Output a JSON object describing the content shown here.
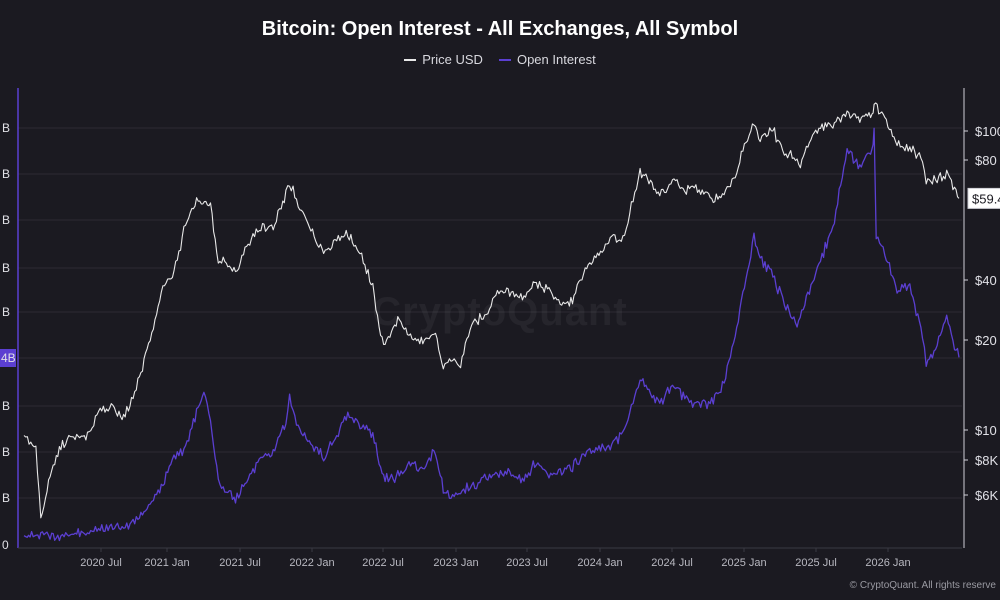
{
  "chart_data": {
    "type": "line",
    "title": "Bitcoin: Open Interest - All Exchanges, All Symbol",
    "legend_placement": "top-center",
    "grid": true,
    "x_ticks": [
      "2020 Jul",
      "2021 Jan",
      "2021 Jul",
      "2022 Jan",
      "2022 Jul",
      "2023 Jan",
      "2023 Jul",
      "2024 Jan",
      "2024 Jul",
      "2025 Jan",
      "2025 Jul",
      "2026 Jan"
    ],
    "xlim": [
      "2020-02-01",
      "2026-05-01"
    ],
    "left_axis": {
      "tick_labels": [
        "0",
        "B",
        "B",
        "B",
        "4B",
        "B",
        "B",
        "B",
        "B",
        "B"
      ],
      "highlight_label": "4B"
    },
    "right_axis": {
      "scale": "log",
      "tick_labels": [
        "$6K",
        "$8K",
        "$10",
        "$20",
        "$40",
        "$80",
        "$100"
      ],
      "current_price_label": "$59.4"
    },
    "series": [
      {
        "name": "Price USD",
        "color": "#e8e8e8",
        "points": [
          [
            "2020-02-01",
            9500
          ],
          [
            "2020-03-01",
            8700
          ],
          [
            "2020-03-13",
            5000
          ],
          [
            "2020-04-01",
            6600
          ],
          [
            "2020-05-01",
            8800
          ],
          [
            "2020-06-01",
            9600
          ],
          [
            "2020-07-01",
            9200
          ],
          [
            "2020-08-01",
            11600
          ],
          [
            "2020-09-01",
            11700
          ],
          [
            "2020-10-01",
            10800
          ],
          [
            "2020-11-01",
            13800
          ],
          [
            "2020-12-01",
            19000
          ],
          [
            "2021-01-01",
            29000
          ],
          [
            "2021-02-01",
            33500
          ],
          [
            "2021-03-01",
            49000
          ],
          [
            "2021-04-01",
            59000
          ],
          [
            "2021-05-01",
            57000
          ],
          [
            "2021-05-20",
            37000
          ],
          [
            "2021-06-01",
            36500
          ],
          [
            "2021-07-01",
            33500
          ],
          [
            "2021-08-01",
            41500
          ],
          [
            "2021-09-01",
            47000
          ],
          [
            "2021-10-01",
            48000
          ],
          [
            "2021-11-01",
            61000
          ],
          [
            "2021-11-10",
            67500
          ],
          [
            "2021-12-01",
            57000
          ],
          [
            "2022-01-01",
            47000
          ],
          [
            "2022-02-01",
            38500
          ],
          [
            "2022-03-01",
            43000
          ],
          [
            "2022-04-01",
            45500
          ],
          [
            "2022-05-01",
            38500
          ],
          [
            "2022-06-01",
            29800
          ],
          [
            "2022-06-20",
            20000
          ],
          [
            "2022-07-01",
            19300
          ],
          [
            "2022-08-01",
            23300
          ],
          [
            "2022-09-01",
            20000
          ],
          [
            "2022-10-01",
            19400
          ],
          [
            "2022-11-01",
            20500
          ],
          [
            "2022-11-20",
            16200
          ],
          [
            "2022-12-01",
            17100
          ],
          [
            "2023-01-01",
            16600
          ],
          [
            "2023-02-01",
            23100
          ],
          [
            "2023-03-01",
            23600
          ],
          [
            "2023-04-01",
            28500
          ],
          [
            "2023-05-01",
            29000
          ],
          [
            "2023-06-01",
            27200
          ],
          [
            "2023-07-01",
            30500
          ],
          [
            "2023-08-01",
            29300
          ],
          [
            "2023-09-01",
            25900
          ],
          [
            "2023-10-01",
            27000
          ],
          [
            "2023-11-01",
            34500
          ],
          [
            "2023-12-01",
            38000
          ],
          [
            "2024-01-01",
            44000
          ],
          [
            "2024-02-01",
            43000
          ],
          [
            "2024-03-01",
            62000
          ],
          [
            "2024-03-14",
            73000
          ],
          [
            "2024-04-01",
            70000
          ],
          [
            "2024-05-01",
            60000
          ],
          [
            "2024-06-01",
            67500
          ],
          [
            "2024-07-01",
            63000
          ],
          [
            "2024-08-01",
            64600
          ],
          [
            "2024-09-01",
            59000
          ],
          [
            "2024-10-01",
            61000
          ],
          [
            "2024-11-01",
            70000
          ],
          [
            "2024-12-01",
            96000
          ],
          [
            "2024-12-17",
            106000
          ],
          [
            "2025-01-01",
            94000
          ],
          [
            "2025-02-01",
            101000
          ],
          [
            "2025-03-01",
            84000
          ],
          [
            "2025-04-01",
            82000
          ],
          [
            "2025-04-09",
            77000
          ],
          [
            "2025-05-01",
            94000
          ],
          [
            "2025-06-01",
            104000
          ],
          [
            "2025-07-01",
            106000
          ],
          [
            "2025-08-01",
            115000
          ],
          [
            "2025-09-01",
            110000
          ],
          [
            "2025-10-01",
            114000
          ],
          [
            "2025-10-06",
            124000
          ],
          [
            "2025-11-01",
            110000
          ],
          [
            "2025-12-01",
            91000
          ],
          [
            "2026-01-01",
            88000
          ],
          [
            "2026-02-01",
            80000
          ],
          [
            "2026-02-10",
            67000
          ],
          [
            "2026-03-01",
            68000
          ],
          [
            "2026-04-01",
            72000
          ],
          [
            "2026-04-20",
            64000
          ],
          [
            "2026-05-01",
            59400
          ]
        ]
      },
      {
        "name": "Open Interest",
        "color": "#5b3fd1",
        "points": [
          [
            "2020-02-01",
            0.2
          ],
          [
            "2020-03-13",
            0.25
          ],
          [
            "2020-04-01",
            0.18
          ],
          [
            "2020-05-01",
            0.21
          ],
          [
            "2020-06-01",
            0.25
          ],
          [
            "2020-07-01",
            0.3
          ],
          [
            "2020-08-01",
            0.34
          ],
          [
            "2020-09-01",
            0.4
          ],
          [
            "2020-10-01",
            0.41
          ],
          [
            "2020-11-01",
            0.55
          ],
          [
            "2020-12-01",
            0.8
          ],
          [
            "2021-01-01",
            1.2
          ],
          [
            "2021-02-01",
            1.9
          ],
          [
            "2021-03-01",
            2.1
          ],
          [
            "2021-04-01",
            3.0
          ],
          [
            "2021-04-15",
            3.38
          ],
          [
            "2021-05-01",
            2.7
          ],
          [
            "2021-05-20",
            1.4
          ],
          [
            "2021-06-01",
            1.2
          ],
          [
            "2021-07-01",
            1.0
          ],
          [
            "2021-08-01",
            1.4
          ],
          [
            "2021-09-01",
            1.9
          ],
          [
            "2021-10-01",
            2.0
          ],
          [
            "2021-11-01",
            2.7
          ],
          [
            "2021-11-10",
            3.25
          ],
          [
            "2021-12-01",
            2.5
          ],
          [
            "2022-01-01",
            2.2
          ],
          [
            "2022-02-01",
            1.9
          ],
          [
            "2022-03-01",
            2.3
          ],
          [
            "2022-04-01",
            2.85
          ],
          [
            "2022-05-01",
            2.6
          ],
          [
            "2022-06-01",
            2.4
          ],
          [
            "2022-06-20",
            1.7
          ],
          [
            "2022-07-01",
            1.4
          ],
          [
            "2022-08-01",
            1.5
          ],
          [
            "2022-09-01",
            1.8
          ],
          [
            "2022-10-01",
            1.6
          ],
          [
            "2022-11-01",
            2.05
          ],
          [
            "2022-11-20",
            1.2
          ],
          [
            "2022-12-01",
            1.1
          ],
          [
            "2023-01-01",
            1.15
          ],
          [
            "2023-02-01",
            1.3
          ],
          [
            "2023-03-01",
            1.45
          ],
          [
            "2023-04-01",
            1.55
          ],
          [
            "2023-05-01",
            1.6
          ],
          [
            "2023-06-01",
            1.35
          ],
          [
            "2023-07-01",
            1.75
          ],
          [
            "2023-08-01",
            1.55
          ],
          [
            "2023-09-01",
            1.6
          ],
          [
            "2023-10-01",
            1.7
          ],
          [
            "2023-11-01",
            1.95
          ],
          [
            "2023-12-01",
            2.05
          ],
          [
            "2024-01-01",
            2.15
          ],
          [
            "2024-02-01",
            2.4
          ],
          [
            "2024-03-01",
            3.2
          ],
          [
            "2024-03-14",
            3.6
          ],
          [
            "2024-04-01",
            3.4
          ],
          [
            "2024-05-01",
            3.1
          ],
          [
            "2024-06-01",
            3.4
          ],
          [
            "2024-07-01",
            3.2
          ],
          [
            "2024-08-01",
            3.0
          ],
          [
            "2024-09-01",
            3.1
          ],
          [
            "2024-10-01",
            3.4
          ],
          [
            "2024-11-01",
            4.5
          ],
          [
            "2024-12-01",
            6.0
          ],
          [
            "2024-12-17",
            6.6
          ],
          [
            "2025-01-01",
            6.2
          ],
          [
            "2025-02-01",
            5.8
          ],
          [
            "2025-03-01",
            5.2
          ],
          [
            "2025-04-01",
            4.7
          ],
          [
            "2025-05-01",
            5.5
          ],
          [
            "2025-06-01",
            6.2
          ],
          [
            "2025-07-01",
            7.0
          ],
          [
            "2025-08-01",
            8.5
          ],
          [
            "2025-09-01",
            8.2
          ],
          [
            "2025-10-01",
            8.5
          ],
          [
            "2025-10-06",
            8.9
          ],
          [
            "2025-10-11",
            6.6
          ],
          [
            "2025-11-01",
            6.3
          ],
          [
            "2025-12-01",
            5.5
          ],
          [
            "2026-01-01",
            5.6
          ],
          [
            "2026-02-01",
            4.5
          ],
          [
            "2026-02-10",
            4.0
          ],
          [
            "2026-03-01",
            4.1
          ],
          [
            "2026-04-01",
            5.0
          ],
          [
            "2026-04-20",
            4.3
          ],
          [
            "2026-05-01",
            4.05
          ]
        ]
      }
    ]
  },
  "watermark": "CryptoQuant",
  "footer": {
    "copyright": "© CryptoQuant. All rights reserve"
  }
}
